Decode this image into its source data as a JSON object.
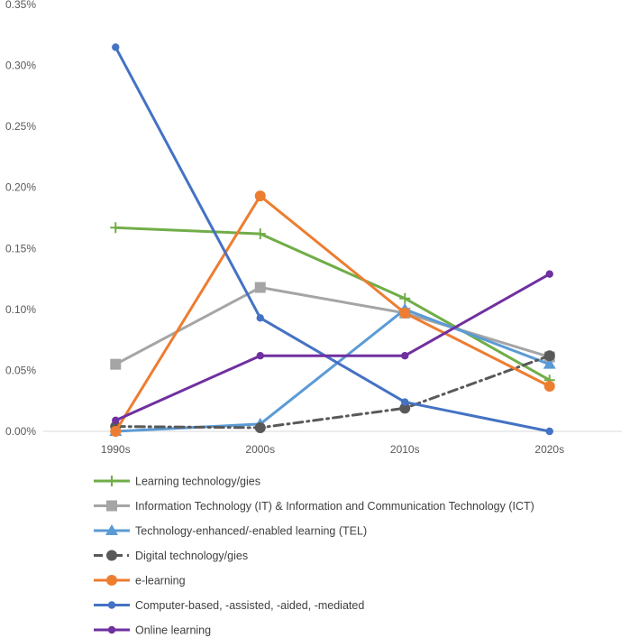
{
  "chart_data": {
    "type": "line",
    "title": "",
    "xlabel": "",
    "ylabel": "",
    "categories": [
      "1990s",
      "2000s",
      "2010s",
      "2020s"
    ],
    "ylim": [
      0,
      0.35
    ],
    "yticks": [
      0,
      0.05,
      0.1,
      0.15,
      0.2,
      0.25,
      0.3,
      0.35
    ],
    "ytick_labels": [
      "0.00%",
      "0.05%",
      "0.10%",
      "0.15%",
      "0.20%",
      "0.25%",
      "0.30%",
      "0.35%"
    ],
    "grid": false,
    "legend_position": "bottom",
    "series": [
      {
        "name": "Learning technology/gies",
        "values": [
          0.167,
          0.162,
          0.109,
          0.042
        ],
        "color": "#70AD47",
        "marker": "plus",
        "dash": "solid"
      },
      {
        "name": "Information Technology (IT) & Information and Communication Technology (ICT)",
        "values": [
          0.055,
          0.118,
          0.097,
          0.061
        ],
        "color": "#A5A5A5",
        "marker": "square",
        "dash": "solid"
      },
      {
        "name": "Technology-enhanced/-enabled learning (TEL)",
        "values": [
          0.0,
          0.006,
          0.1,
          0.055
        ],
        "color": "#5B9BD5",
        "marker": "triangle",
        "dash": "solid"
      },
      {
        "name": "Digital technology/gies",
        "values": [
          0.004,
          0.003,
          0.019,
          0.062
        ],
        "color": "#595959",
        "marker": "circle",
        "dash": "dashdot"
      },
      {
        "name": "e-learning",
        "values": [
          0.0,
          0.193,
          0.097,
          0.037
        ],
        "color": "#ED7D31",
        "marker": "circle",
        "dash": "solid"
      },
      {
        "name": "Computer-based, -assisted, -aided, -mediated",
        "values": [
          0.315,
          0.093,
          0.024,
          0.0
        ],
        "color": "#4472C4",
        "marker": "smallcircle",
        "dash": "solid"
      },
      {
        "name": "Online learning",
        "values": [
          0.009,
          0.062,
          0.062,
          0.129
        ],
        "color": "#7030A0",
        "marker": "smallcircle",
        "dash": "solid"
      }
    ]
  }
}
